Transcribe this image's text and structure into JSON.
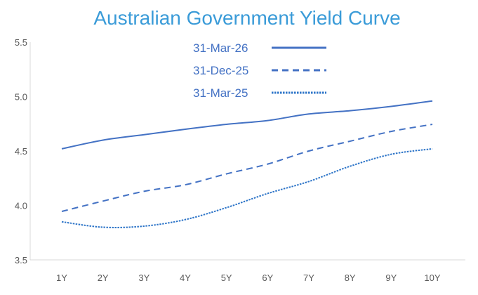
{
  "chart_data": {
    "type": "line",
    "title": "Australian Government Yield Curve",
    "xlabel": "",
    "ylabel": "",
    "categories": [
      "1Y",
      "2Y",
      "3Y",
      "4Y",
      "5Y",
      "6Y",
      "7Y",
      "8Y",
      "9Y",
      "10Y"
    ],
    "ylim": [
      3.5,
      5.5
    ],
    "yticks": [
      "3.5",
      "4.0",
      "4.5",
      "5.0",
      "5.5"
    ],
    "grid": false,
    "legend_placement": "top-center",
    "series": [
      {
        "name": "31-Mar-26",
        "style": "solid",
        "color": "#4472c4",
        "values": [
          4.52,
          4.6,
          4.65,
          4.7,
          4.745,
          4.78,
          4.84,
          4.87,
          4.91,
          4.96
        ]
      },
      {
        "name": "31-Dec-25",
        "style": "dashed",
        "color": "#4472c4",
        "values": [
          3.945,
          4.04,
          4.13,
          4.19,
          4.29,
          4.38,
          4.5,
          4.59,
          4.68,
          4.745
        ]
      },
      {
        "name": "31-Mar-25",
        "style": "dotted",
        "color": "#2e75c8",
        "values": [
          3.85,
          3.8,
          3.81,
          3.87,
          3.98,
          4.11,
          4.22,
          4.36,
          4.47,
          4.52
        ]
      }
    ]
  }
}
